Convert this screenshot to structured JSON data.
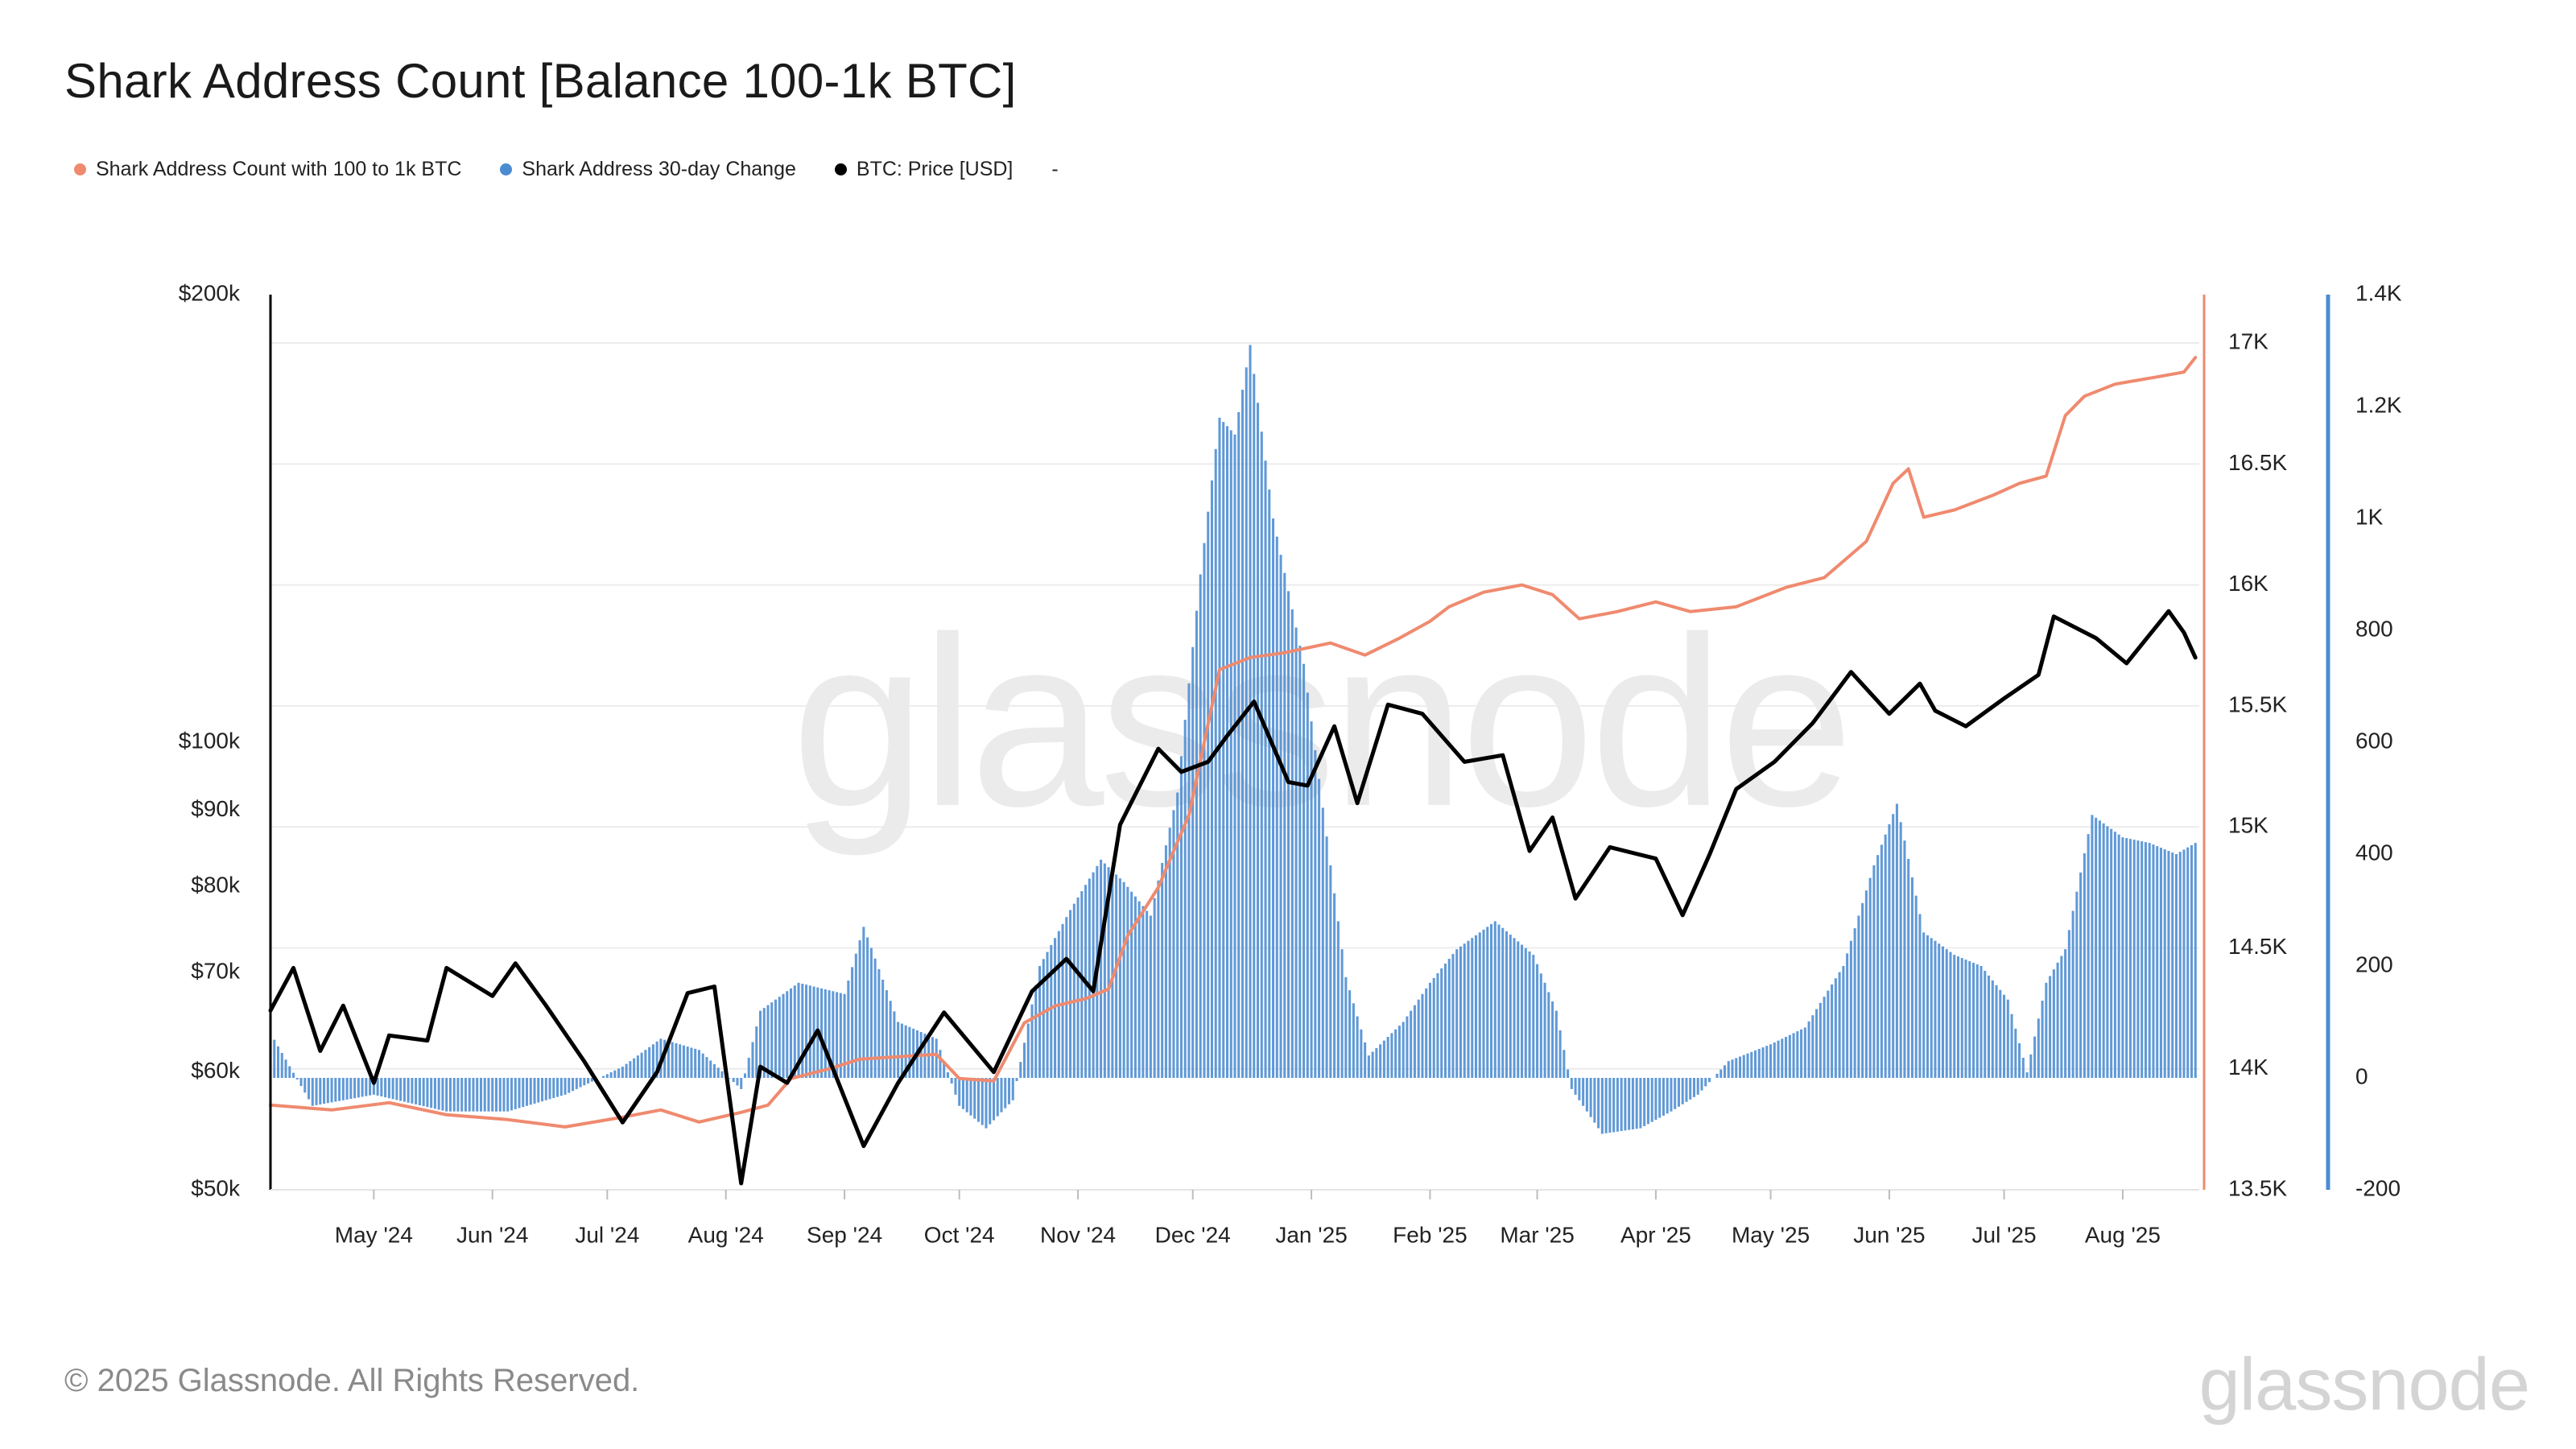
{
  "title": "Shark Address Count [Balance 100-1k BTC]",
  "legend": {
    "items": [
      {
        "label": "Shark Address Count with 100 to 1k BTC",
        "color": "#ef8a6f"
      },
      {
        "label": "Shark Address 30-day Change",
        "color": "#4a8bd1"
      },
      {
        "label": "BTC: Price [USD]",
        "color": "#000000"
      }
    ],
    "extra": "-"
  },
  "watermark": "glassnode",
  "footer": {
    "copyright": "© 2025 Glassnode. All Rights Reserved.",
    "brand": "glassnode"
  },
  "chart_data": {
    "type": "line",
    "grid": true,
    "legend_placement": "top-left",
    "x_ticks": [
      "May '24",
      "Jun '24",
      "Jul '24",
      "Aug '24",
      "Sep '24",
      "Oct '24",
      "Nov '24",
      "Dec '24",
      "Jan '25",
      "Feb '25",
      "Mar '25",
      "Apr '25",
      "May '25",
      "Jun '25",
      "Jul '25",
      "Aug '25"
    ],
    "xlim": [
      "2024-04-04",
      "2025-08-21"
    ],
    "left_axis": {
      "scale": "log",
      "ylim": [
        50000,
        200000
      ],
      "ticks": [
        200000,
        100000,
        90000,
        80000,
        70000,
        60000,
        50000
      ],
      "tick_labels": [
        "$200k",
        "$100k",
        "$90k",
        "$80k",
        "$70k",
        "$60k",
        "$50k"
      ]
    },
    "right_axis_1": {
      "ylim": [
        13500,
        17200
      ],
      "ticks": [
        17000,
        16500,
        16000,
        15500,
        15000,
        14500,
        14000,
        13500
      ],
      "tick_labels": [
        "17K",
        "16.5K",
        "16K",
        "15.5K",
        "15K",
        "14.5K",
        "14K",
        "13.5K"
      ],
      "color": "#ef8a6f"
    },
    "right_axis_2": {
      "ylim": [
        -200,
        1400
      ],
      "ticks": [
        1400,
        1200,
        1000,
        800,
        600,
        400,
        200,
        0,
        -200
      ],
      "tick_labels": [
        "1.4K",
        "1.2K",
        "1K",
        "800",
        "600",
        "400",
        "200",
        "0",
        "-200"
      ],
      "color": "#4a8bd1"
    },
    "series": [
      {
        "name": "Shark Address Count with 100 to 1k BTC",
        "axis": "right_axis_1",
        "color": "#ef8a6f",
        "points": [
          [
            "2024-04-04",
            13850
          ],
          [
            "2024-04-20",
            13830
          ],
          [
            "2024-05-05",
            13860
          ],
          [
            "2024-05-20",
            13810
          ],
          [
            "2024-06-05",
            13790
          ],
          [
            "2024-06-20",
            13760
          ],
          [
            "2024-07-05",
            13800
          ],
          [
            "2024-07-15",
            13830
          ],
          [
            "2024-07-25",
            13780
          ],
          [
            "2024-08-05",
            13820
          ],
          [
            "2024-08-12",
            13850
          ],
          [
            "2024-08-18",
            13960
          ],
          [
            "2024-08-28",
            14000
          ],
          [
            "2024-09-05",
            14040
          ],
          [
            "2024-09-15",
            14050
          ],
          [
            "2024-09-25",
            14060
          ],
          [
            "2024-10-01",
            13960
          ],
          [
            "2024-10-10",
            13950
          ],
          [
            "2024-10-18",
            14190
          ],
          [
            "2024-10-26",
            14260
          ],
          [
            "2024-11-03",
            14290
          ],
          [
            "2024-11-09",
            14330
          ],
          [
            "2024-11-14",
            14550
          ],
          [
            "2024-11-22",
            14750
          ],
          [
            "2024-11-30",
            15050
          ],
          [
            "2024-12-08",
            15650
          ],
          [
            "2024-12-16",
            15700
          ],
          [
            "2024-12-25",
            15720
          ],
          [
            "2025-01-06",
            15760
          ],
          [
            "2025-01-15",
            15710
          ],
          [
            "2025-01-24",
            15780
          ],
          [
            "2025-02-01",
            15850
          ],
          [
            "2025-02-06",
            15910
          ],
          [
            "2025-02-15",
            15970
          ],
          [
            "2025-02-25",
            16000
          ],
          [
            "2025-03-05",
            15960
          ],
          [
            "2025-03-12",
            15860
          ],
          [
            "2025-03-22",
            15890
          ],
          [
            "2025-04-01",
            15930
          ],
          [
            "2025-04-10",
            15890
          ],
          [
            "2025-04-22",
            15910
          ],
          [
            "2025-05-05",
            15990
          ],
          [
            "2025-05-15",
            16030
          ],
          [
            "2025-05-26",
            16180
          ],
          [
            "2025-06-02",
            16420
          ],
          [
            "2025-06-06",
            16480
          ],
          [
            "2025-06-10",
            16280
          ],
          [
            "2025-06-18",
            16310
          ],
          [
            "2025-06-28",
            16370
          ],
          [
            "2025-07-05",
            16420
          ],
          [
            "2025-07-12",
            16450
          ],
          [
            "2025-07-17",
            16700
          ],
          [
            "2025-07-22",
            16780
          ],
          [
            "2025-07-30",
            16830
          ],
          [
            "2025-08-10",
            16860
          ],
          [
            "2025-08-17",
            16880
          ],
          [
            "2025-08-20",
            16940
          ]
        ]
      },
      {
        "name": "Shark Address 30-day Change",
        "axis": "right_axis_2",
        "color": "#4a8bd1",
        "kind": "bar",
        "points": [
          [
            "2024-04-04",
            80
          ],
          [
            "2024-04-15",
            -50
          ],
          [
            "2024-05-01",
            -30
          ],
          [
            "2024-05-20",
            -60
          ],
          [
            "2024-06-05",
            -60
          ],
          [
            "2024-06-20",
            -30
          ],
          [
            "2024-07-05",
            20
          ],
          [
            "2024-07-15",
            70
          ],
          [
            "2024-07-25",
            50
          ],
          [
            "2024-08-05",
            -20
          ],
          [
            "2024-08-10",
            120
          ],
          [
            "2024-08-20",
            170
          ],
          [
            "2024-09-01",
            150
          ],
          [
            "2024-09-06",
            270
          ],
          [
            "2024-09-15",
            100
          ],
          [
            "2024-09-25",
            70
          ],
          [
            "2024-10-01",
            -50
          ],
          [
            "2024-10-08",
            -90
          ],
          [
            "2024-10-15",
            -40
          ],
          [
            "2024-10-22",
            200
          ],
          [
            "2024-10-30",
            300
          ],
          [
            "2024-11-07",
            390
          ],
          [
            "2024-11-13",
            350
          ],
          [
            "2024-11-20",
            290
          ],
          [
            "2024-11-27",
            510
          ],
          [
            "2024-12-03",
            900
          ],
          [
            "2024-12-08",
            1180
          ],
          [
            "2024-12-12",
            1150
          ],
          [
            "2024-12-16",
            1310
          ],
          [
            "2024-12-22",
            1000
          ],
          [
            "2024-12-30",
            740
          ],
          [
            "2025-01-06",
            380
          ],
          [
            "2025-01-10",
            180
          ],
          [
            "2025-01-16",
            40
          ],
          [
            "2025-01-25",
            100
          ],
          [
            "2025-02-01",
            170
          ],
          [
            "2025-02-08",
            230
          ],
          [
            "2025-02-18",
            280
          ],
          [
            "2025-02-28",
            220
          ],
          [
            "2025-03-06",
            120
          ],
          [
            "2025-03-10",
            -20
          ],
          [
            "2025-03-18",
            -100
          ],
          [
            "2025-03-28",
            -90
          ],
          [
            "2025-04-05",
            -60
          ],
          [
            "2025-04-12",
            -30
          ],
          [
            "2025-04-20",
            30
          ],
          [
            "2025-05-01",
            60
          ],
          [
            "2025-05-10",
            90
          ],
          [
            "2025-05-20",
            200
          ],
          [
            "2025-05-28",
            380
          ],
          [
            "2025-06-03",
            490
          ],
          [
            "2025-06-10",
            260
          ],
          [
            "2025-06-18",
            220
          ],
          [
            "2025-06-25",
            200
          ],
          [
            "2025-07-02",
            140
          ],
          [
            "2025-07-07",
            10
          ],
          [
            "2025-07-12",
            170
          ],
          [
            "2025-07-17",
            230
          ],
          [
            "2025-07-24",
            470
          ],
          [
            "2025-08-01",
            430
          ],
          [
            "2025-08-08",
            420
          ],
          [
            "2025-08-15",
            400
          ],
          [
            "2025-08-20",
            420
          ]
        ]
      },
      {
        "name": "BTC: Price [USD]",
        "axis": "left_axis",
        "color": "#000000",
        "points": [
          [
            "2024-04-04",
            66000
          ],
          [
            "2024-04-10",
            70500
          ],
          [
            "2024-04-17",
            62000
          ],
          [
            "2024-04-23",
            66500
          ],
          [
            "2024-05-01",
            59000
          ],
          [
            "2024-05-05",
            63500
          ],
          [
            "2024-05-15",
            63000
          ],
          [
            "2024-05-20",
            70500
          ],
          [
            "2024-06-01",
            67500
          ],
          [
            "2024-06-07",
            71000
          ],
          [
            "2024-06-15",
            66500
          ],
          [
            "2024-06-25",
            61000
          ],
          [
            "2024-07-05",
            55500
          ],
          [
            "2024-07-14",
            60000
          ],
          [
            "2024-07-22",
            67800
          ],
          [
            "2024-07-29",
            68500
          ],
          [
            "2024-08-05",
            50500
          ],
          [
            "2024-08-10",
            60500
          ],
          [
            "2024-08-17",
            59000
          ],
          [
            "2024-08-25",
            64000
          ],
          [
            "2024-09-06",
            53500
          ],
          [
            "2024-09-15",
            59000
          ],
          [
            "2024-09-27",
            65800
          ],
          [
            "2024-10-10",
            60000
          ],
          [
            "2024-10-20",
            68000
          ],
          [
            "2024-10-29",
            71500
          ],
          [
            "2024-11-05",
            68000
          ],
          [
            "2024-11-12",
            88000
          ],
          [
            "2024-11-22",
            99000
          ],
          [
            "2024-11-28",
            95500
          ],
          [
            "2024-12-05",
            97000
          ],
          [
            "2024-12-10",
            101000
          ],
          [
            "2024-12-17",
            106500
          ],
          [
            "2024-12-26",
            94000
          ],
          [
            "2024-12-31",
            93500
          ],
          [
            "2025-01-07",
            102500
          ],
          [
            "2025-01-13",
            91000
          ],
          [
            "2025-01-21",
            106000
          ],
          [
            "2025-01-30",
            104500
          ],
          [
            "2025-02-10",
            97000
          ],
          [
            "2025-02-20",
            98000
          ],
          [
            "2025-02-27",
            84500
          ],
          [
            "2025-03-05",
            89000
          ],
          [
            "2025-03-11",
            78500
          ],
          [
            "2025-03-20",
            85000
          ],
          [
            "2025-04-01",
            83500
          ],
          [
            "2025-04-08",
            76500
          ],
          [
            "2025-04-15",
            84000
          ],
          [
            "2025-04-22",
            93000
          ],
          [
            "2025-05-02",
            97000
          ],
          [
            "2025-05-12",
            103000
          ],
          [
            "2025-05-22",
            111500
          ],
          [
            "2025-06-01",
            104500
          ],
          [
            "2025-06-09",
            109500
          ],
          [
            "2025-06-13",
            105000
          ],
          [
            "2025-06-21",
            102500
          ],
          [
            "2025-07-01",
            107000
          ],
          [
            "2025-07-10",
            111000
          ],
          [
            "2025-07-14",
            121500
          ],
          [
            "2025-07-25",
            117500
          ],
          [
            "2025-08-02",
            113000
          ],
          [
            "2025-08-13",
            122500
          ],
          [
            "2025-08-17",
            118500
          ],
          [
            "2025-08-20",
            114000
          ]
        ]
      }
    ]
  }
}
